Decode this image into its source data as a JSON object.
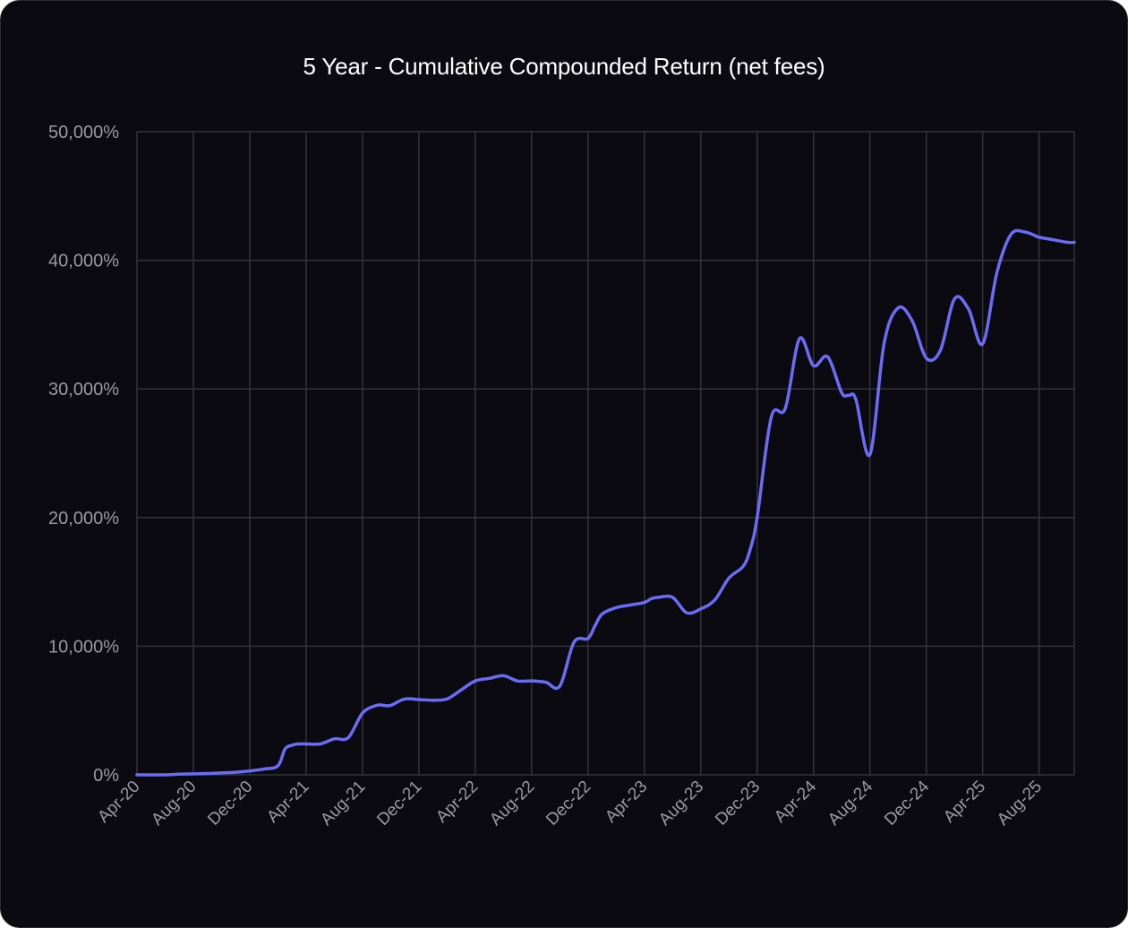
{
  "chart_data": {
    "type": "line",
    "title": "5 Year - Cumulative Compounded Return (net fees)",
    "xlabel": "",
    "ylabel": "",
    "ylim": [
      0,
      50000
    ],
    "yticks": [
      0,
      10000,
      20000,
      30000,
      40000,
      50000
    ],
    "ytick_labels": [
      "0%",
      "10,000%",
      "20,000%",
      "30,000%",
      "40,000%",
      "50,000%"
    ],
    "xtick_labels": [
      "Apr-20",
      "Aug-20",
      "Dec-20",
      "Apr-21",
      "Aug-21",
      "Dec-21",
      "Apr-22",
      "Aug-22",
      "Dec-22",
      "Apr-23",
      "Aug-23",
      "Dec-23",
      "Apr-24",
      "Aug-24",
      "Dec-24",
      "Apr-25",
      "Aug-25"
    ],
    "x_months_range": [
      0,
      66.5
    ],
    "grid": true,
    "legend": "none",
    "line_color": "#6b6cf6",
    "series": [
      {
        "x": [
          0,
          1,
          2,
          3,
          4,
          5,
          6,
          7,
          8,
          9,
          10,
          10.5,
          11,
          11.5,
          12,
          13,
          14,
          15,
          16,
          17,
          17.5,
          18,
          19,
          20,
          21,
          22,
          23,
          24,
          25,
          26,
          27,
          28,
          29,
          30,
          31,
          32,
          32.5,
          33,
          34,
          35,
          36,
          36.5,
          37,
          38,
          39,
          40,
          41,
          42,
          43,
          43.5,
          44,
          45,
          46,
          47,
          48,
          49,
          50,
          50.5,
          51,
          52,
          53,
          54,
          55,
          56,
          57,
          58,
          59,
          60,
          61,
          62,
          63,
          64,
          65,
          66,
          66.5
        ],
        "values": [
          0,
          0,
          0,
          50,
          80,
          100,
          150,
          200,
          300,
          450,
          700,
          2000,
          2300,
          2400,
          2400,
          2400,
          2800,
          2900,
          4800,
          5400,
          5400,
          5400,
          5900,
          5850,
          5800,
          5900,
          6600,
          7300,
          7500,
          7700,
          7300,
          7300,
          7200,
          6900,
          10300,
          10600,
          11600,
          12500,
          13000,
          13200,
          13400,
          13700,
          13800,
          13800,
          12600,
          12900,
          13600,
          15300,
          16200,
          17500,
          20000,
          27800,
          28500,
          33900,
          31800,
          32500,
          29700,
          29500,
          29200,
          24900,
          33500,
          36300,
          35300,
          32400,
          33000,
          37000,
          36200,
          33500,
          39000,
          42000,
          42200,
          41800,
          41600,
          41400,
          41400
        ]
      }
    ]
  }
}
